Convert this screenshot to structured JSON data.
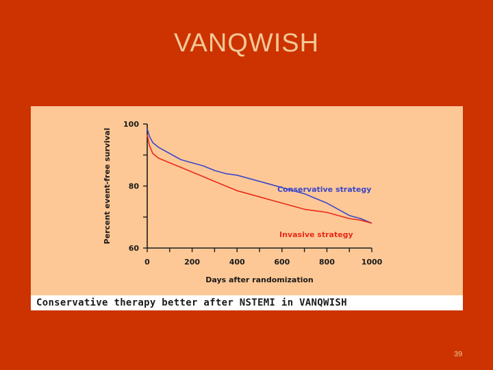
{
  "slide": {
    "title": "VANQWISH",
    "caption": "Conservative therapy better after NSTEMI in VANQWISH",
    "page_number": "39"
  },
  "colors": {
    "background": "#cc3300",
    "panel": "#fdc896",
    "conservative": "#3a46c8",
    "invasive": "#e82a1a"
  },
  "chart_data": {
    "type": "line",
    "title": "",
    "xlabel": "Days after randomization",
    "ylabel": "Percent event-free survival",
    "xlim": [
      0,
      1000
    ],
    "ylim": [
      60,
      100
    ],
    "x_ticks": [
      0,
      200,
      400,
      600,
      800,
      1000
    ],
    "y_ticks": [
      60,
      80,
      100
    ],
    "grid": false,
    "series": [
      {
        "name": "Conservative strategy",
        "color": "#3a46c8",
        "x": [
          0,
          10,
          25,
          50,
          100,
          150,
          200,
          250,
          300,
          350,
          400,
          450,
          500,
          550,
          600,
          650,
          700,
          750,
          800,
          850,
          900,
          950,
          1000
        ],
        "y": [
          98.5,
          96,
          94,
          92.5,
          90.5,
          88.5,
          87.5,
          86.5,
          85,
          84,
          83.5,
          82.5,
          81.5,
          80.5,
          79.5,
          78.5,
          77.5,
          76,
          74.5,
          72.5,
          70.5,
          69.5,
          68
        ]
      },
      {
        "name": "Invasive strategy",
        "color": "#e82a1a",
        "x": [
          0,
          10,
          25,
          50,
          100,
          150,
          200,
          250,
          300,
          350,
          400,
          450,
          500,
          550,
          600,
          650,
          700,
          750,
          800,
          850,
          900,
          950,
          1000
        ],
        "y": [
          96.5,
          93,
          90.5,
          89,
          87.5,
          86,
          84.5,
          83,
          81.5,
          80,
          78.5,
          77.5,
          76.5,
          75.5,
          74.5,
          73.5,
          72.5,
          72,
          71.5,
          70.5,
          69.5,
          69,
          68
        ]
      }
    ]
  }
}
